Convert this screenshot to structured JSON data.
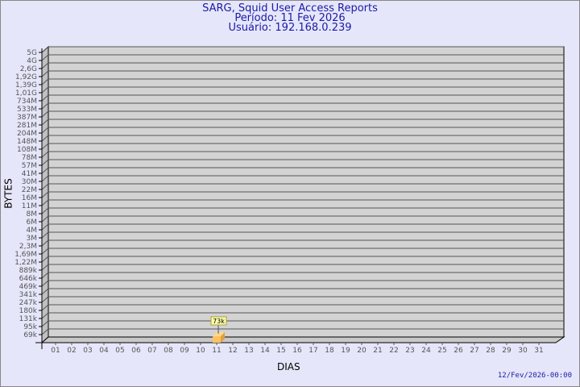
{
  "title": {
    "line1": "SARG, Squid User Access Reports",
    "line2": "Período: 11 Fev 2026",
    "line3": "Usuário: 192.168.0.239"
  },
  "footer": "12/Fev/2026-00:00",
  "chart_data": {
    "type": "bar",
    "xlabel": "DIAS",
    "ylabel": "BYTES",
    "y_scale": "log",
    "grid": true,
    "y_ticks": [
      "5G",
      "4G",
      "2,6G",
      "1,92G",
      "1,39G",
      "1,01G",
      "734M",
      "533M",
      "387M",
      "281M",
      "204M",
      "148M",
      "108M",
      "78M",
      "57M",
      "41M",
      "30M",
      "22M",
      "16M",
      "11M",
      "8M",
      "6M",
      "4M",
      "3M",
      "2,3M",
      "1,69M",
      "1,22M",
      "889k",
      "646k",
      "469k",
      "341k",
      "247k",
      "180k",
      "131k",
      "95k",
      "69k"
    ],
    "categories": [
      "01",
      "02",
      "03",
      "04",
      "05",
      "06",
      "07",
      "08",
      "09",
      "10",
      "11",
      "12",
      "13",
      "14",
      "15",
      "16",
      "17",
      "18",
      "19",
      "20",
      "21",
      "22",
      "23",
      "24",
      "25",
      "26",
      "27",
      "28",
      "29",
      "30",
      "31"
    ],
    "values": [
      null,
      null,
      null,
      null,
      null,
      null,
      null,
      null,
      null,
      null,
      73000,
      null,
      null,
      null,
      null,
      null,
      null,
      null,
      null,
      null,
      null,
      null,
      null,
      null,
      null,
      null,
      null,
      null,
      null,
      null,
      null
    ],
    "data_labels": {
      "11": "73k"
    },
    "colors": {
      "background": "#e6e6fa",
      "wall": "#d3d3d3",
      "bar_front": "#ffc060",
      "bar_side": "#e0a040",
      "label_bg": "#ffffaa"
    }
  }
}
